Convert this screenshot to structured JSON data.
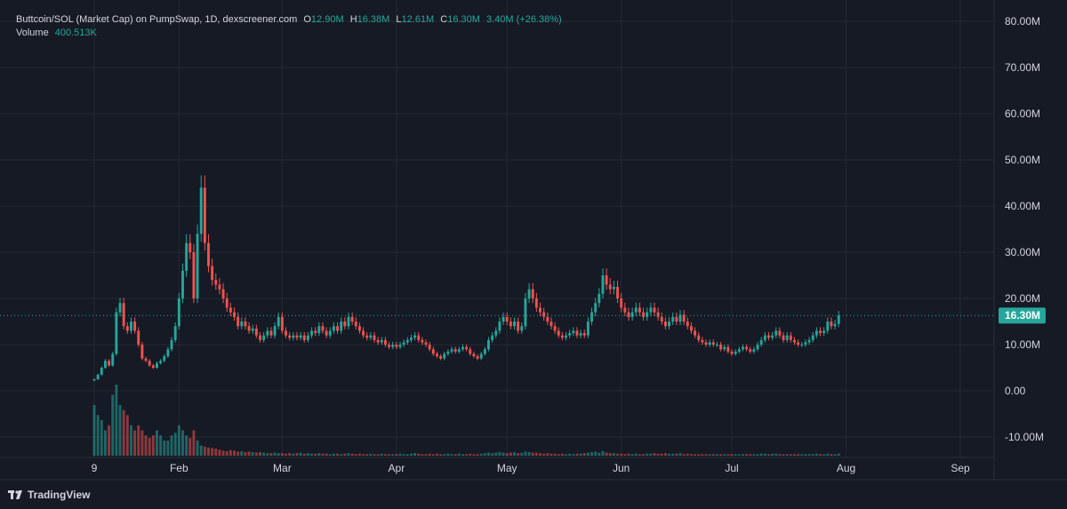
{
  "legend": {
    "symbol": "Buttcoin/SOL (Market Cap) on PumpSwap, 1D, dexscreener.com",
    "o_label": "O",
    "o_value": "12.90M",
    "h_label": "H",
    "h_value": "16.38M",
    "l_label": "L",
    "l_value": "12.61M",
    "c_label": "C",
    "c_value": "16.30M",
    "change": "3.40M (+26.38%)",
    "volume_label": "Volume",
    "volume_value": "400.513K"
  },
  "branding": {
    "name": "TradingView",
    "icon": "tradingview-logo-icon"
  },
  "colors": {
    "up": "#26a69a",
    "down": "#ef5350",
    "background": "#161a25",
    "grid": "#242833",
    "text": "#d1d4dc",
    "last_price_line": "#26a69a"
  },
  "chart_data": {
    "type": "candlestick",
    "x_axis": {
      "ticks": [
        {
          "label": "9",
          "day": 0
        },
        {
          "label": "Feb",
          "day": 23
        },
        {
          "label": "Mar",
          "day": 51
        },
        {
          "label": "Apr",
          "day": 82
        },
        {
          "label": "May",
          "day": 112
        },
        {
          "label": "Jun",
          "day": 143
        },
        {
          "label": "Jul",
          "day": 173
        },
        {
          "label": "Aug",
          "day": 204
        },
        {
          "label": "Sep",
          "day": 235
        }
      ],
      "range_days": [
        -2,
        240
      ]
    },
    "y_axis": {
      "ticks": [
        "80.00M",
        "70.00M",
        "60.00M",
        "50.00M",
        "40.00M",
        "30.00M",
        "20.00M",
        "10.00M",
        "0.00",
        "-10.00M"
      ],
      "tick_values": [
        80,
        70,
        60,
        50,
        40,
        30,
        20,
        10,
        0,
        -10
      ],
      "range": [
        -14,
        84
      ],
      "unit": "M"
    },
    "last_price": {
      "value": 16.3,
      "label": "16.30M"
    },
    "grid": true,
    "close_series": [
      [
        0,
        2.5
      ],
      [
        1,
        3.5
      ],
      [
        2,
        5
      ],
      [
        3,
        6.5
      ],
      [
        4,
        5.5
      ],
      [
        5,
        8
      ],
      [
        6,
        17
      ],
      [
        7,
        19
      ],
      [
        8,
        14
      ],
      [
        9,
        13
      ],
      [
        10,
        15
      ],
      [
        11,
        13
      ],
      [
        12,
        10
      ],
      [
        13,
        7
      ],
      [
        14,
        6.5
      ],
      [
        15,
        5.5
      ],
      [
        16,
        5
      ],
      [
        17,
        6
      ],
      [
        18,
        6.5
      ],
      [
        19,
        7.5
      ],
      [
        20,
        9
      ],
      [
        21,
        11
      ],
      [
        22,
        14
      ],
      [
        23,
        20
      ],
      [
        24,
        26
      ],
      [
        25,
        32
      ],
      [
        26,
        30
      ],
      [
        27,
        20
      ],
      [
        28,
        34
      ],
      [
        29,
        44
      ],
      [
        30,
        32
      ],
      [
        31,
        27
      ],
      [
        32,
        24
      ],
      [
        33,
        23
      ],
      [
        34,
        22
      ],
      [
        35,
        20
      ],
      [
        36,
        18
      ],
      [
        37,
        17
      ],
      [
        38,
        16
      ],
      [
        39,
        14
      ],
      [
        40,
        15
      ],
      [
        41,
        14
      ],
      [
        42,
        13
      ],
      [
        43,
        13.5
      ],
      [
        44,
        12
      ],
      [
        45,
        11
      ],
      [
        46,
        12
      ],
      [
        47,
        13
      ],
      [
        48,
        12
      ],
      [
        49,
        14
      ],
      [
        50,
        16
      ],
      [
        51,
        13
      ],
      [
        52,
        12
      ],
      [
        53,
        11.5
      ],
      [
        54,
        12
      ],
      [
        55,
        11.5
      ],
      [
        56,
        12
      ],
      [
        57,
        11
      ],
      [
        58,
        12
      ],
      [
        59,
        13
      ],
      [
        60,
        12.5
      ],
      [
        61,
        14
      ],
      [
        62,
        13
      ],
      [
        63,
        12
      ],
      [
        64,
        13
      ],
      [
        65,
        14
      ],
      [
        66,
        13
      ],
      [
        67,
        15
      ],
      [
        68,
        14
      ],
      [
        69,
        16
      ],
      [
        70,
        15
      ],
      [
        71,
        14
      ],
      [
        72,
        13
      ],
      [
        73,
        12
      ],
      [
        74,
        11.5
      ],
      [
        75,
        12
      ],
      [
        76,
        11
      ],
      [
        77,
        10.5
      ],
      [
        78,
        11
      ],
      [
        79,
        10
      ],
      [
        80,
        9.5
      ],
      [
        81,
        10
      ],
      [
        82,
        9.5
      ],
      [
        83,
        10
      ],
      [
        84,
        10.5
      ],
      [
        85,
        11
      ],
      [
        86,
        11.5
      ],
      [
        87,
        12
      ],
      [
        88,
        11
      ],
      [
        89,
        10.5
      ],
      [
        90,
        10
      ],
      [
        91,
        9
      ],
      [
        92,
        8
      ],
      [
        93,
        7.5
      ],
      [
        94,
        7
      ],
      [
        95,
        8
      ],
      [
        96,
        8.5
      ],
      [
        97,
        9
      ],
      [
        98,
        8.5
      ],
      [
        99,
        9
      ],
      [
        100,
        9.5
      ],
      [
        101,
        9
      ],
      [
        102,
        8
      ],
      [
        103,
        7.5
      ],
      [
        104,
        7
      ],
      [
        105,
        8
      ],
      [
        106,
        9
      ],
      [
        107,
        11
      ],
      [
        108,
        12
      ],
      [
        109,
        13
      ],
      [
        110,
        15
      ],
      [
        111,
        16
      ],
      [
        112,
        15
      ],
      [
        113,
        14
      ],
      [
        114,
        15
      ],
      [
        115,
        13
      ],
      [
        116,
        14
      ],
      [
        117,
        20
      ],
      [
        118,
        22
      ],
      [
        119,
        20
      ],
      [
        120,
        18
      ],
      [
        121,
        17
      ],
      [
        122,
        16
      ],
      [
        123,
        15
      ],
      [
        124,
        14
      ],
      [
        125,
        13
      ],
      [
        126,
        12
      ],
      [
        127,
        11.5
      ],
      [
        128,
        12
      ],
      [
        129,
        12.5
      ],
      [
        130,
        13
      ],
      [
        131,
        12
      ],
      [
        132,
        12.5
      ],
      [
        133,
        12
      ],
      [
        134,
        15
      ],
      [
        135,
        17
      ],
      [
        136,
        19
      ],
      [
        137,
        21
      ],
      [
        138,
        25
      ],
      [
        139,
        23
      ],
      [
        140,
        22
      ],
      [
        141,
        22.5
      ],
      [
        142,
        20
      ],
      [
        143,
        18
      ],
      [
        144,
        17
      ],
      [
        145,
        16
      ],
      [
        146,
        17
      ],
      [
        147,
        18
      ],
      [
        148,
        17
      ],
      [
        149,
        16
      ],
      [
        150,
        17
      ],
      [
        151,
        18
      ],
      [
        152,
        17
      ],
      [
        153,
        16
      ],
      [
        154,
        15
      ],
      [
        155,
        14
      ],
      [
        156,
        15
      ],
      [
        157,
        16
      ],
      [
        158,
        15
      ],
      [
        159,
        16.5
      ],
      [
        160,
        15
      ],
      [
        161,
        14
      ],
      [
        162,
        13
      ],
      [
        163,
        12
      ],
      [
        164,
        11
      ],
      [
        165,
        10.5
      ],
      [
        166,
        10
      ],
      [
        167,
        10.5
      ],
      [
        168,
        10
      ],
      [
        169,
        10
      ],
      [
        170,
        9
      ],
      [
        171,
        9.5
      ],
      [
        172,
        8.5
      ],
      [
        173,
        8
      ],
      [
        174,
        8.5
      ],
      [
        175,
        9
      ],
      [
        176,
        9.5
      ],
      [
        177,
        9
      ],
      [
        178,
        8.5
      ],
      [
        179,
        9
      ],
      [
        180,
        10
      ],
      [
        181,
        11
      ],
      [
        182,
        12
      ],
      [
        183,
        11.5
      ],
      [
        184,
        12
      ],
      [
        185,
        13
      ],
      [
        186,
        12
      ],
      [
        187,
        11
      ],
      [
        188,
        12
      ],
      [
        189,
        11
      ],
      [
        190,
        10.5
      ],
      [
        191,
        10
      ],
      [
        192,
        10
      ],
      [
        193,
        10.5
      ],
      [
        194,
        11
      ],
      [
        195,
        12
      ],
      [
        196,
        13
      ],
      [
        197,
        12.5
      ],
      [
        198,
        13
      ],
      [
        199,
        15
      ],
      [
        200,
        14
      ],
      [
        201,
        14.5
      ],
      [
        202,
        16.3
      ]
    ],
    "volume_series": [
      [
        0,
        10
      ],
      [
        1,
        8
      ],
      [
        2,
        7
      ],
      [
        3,
        5
      ],
      [
        4,
        6
      ],
      [
        5,
        12
      ],
      [
        6,
        14
      ],
      [
        7,
        10
      ],
      [
        8,
        9
      ],
      [
        9,
        8
      ],
      [
        10,
        6
      ],
      [
        11,
        5
      ],
      [
        12,
        6
      ],
      [
        13,
        5
      ],
      [
        14,
        4
      ],
      [
        15,
        3.5
      ],
      [
        16,
        4
      ],
      [
        17,
        5
      ],
      [
        18,
        4
      ],
      [
        19,
        3
      ],
      [
        20,
        3
      ],
      [
        21,
        4
      ],
      [
        22,
        4.5
      ],
      [
        23,
        6
      ],
      [
        24,
        5
      ],
      [
        25,
        4
      ],
      [
        26,
        3.5
      ],
      [
        27,
        5
      ],
      [
        28,
        3
      ],
      [
        29,
        2
      ],
      [
        30,
        1.8
      ],
      [
        31,
        1.6
      ],
      [
        32,
        1.5
      ],
      [
        33,
        1.4
      ],
      [
        34,
        1.2
      ],
      [
        35,
        1
      ],
      [
        36,
        0.9
      ],
      [
        37,
        1.1
      ],
      [
        38,
        1
      ],
      [
        39,
        0.8
      ],
      [
        40,
        0.9
      ],
      [
        41,
        0.7
      ],
      [
        42,
        0.8
      ],
      [
        43,
        0.7
      ],
      [
        44,
        0.6
      ],
      [
        45,
        0.7
      ],
      [
        46,
        0.6
      ],
      [
        47,
        0.5
      ],
      [
        48,
        0.5
      ],
      [
        49,
        0.6
      ],
      [
        50,
        0.5
      ],
      [
        51,
        0.5
      ],
      [
        52,
        0.4
      ],
      [
        53,
        0.5
      ],
      [
        54,
        0.4
      ],
      [
        55,
        0.5
      ],
      [
        56,
        0.6
      ],
      [
        57,
        0.4
      ],
      [
        58,
        0.5
      ],
      [
        59,
        0.4
      ],
      [
        60,
        0.4
      ],
      [
        61,
        0.5
      ],
      [
        62,
        0.4
      ],
      [
        63,
        0.4
      ],
      [
        64,
        0.3
      ],
      [
        65,
        0.4
      ],
      [
        66,
        0.4
      ],
      [
        67,
        0.3
      ],
      [
        68,
        0.4
      ],
      [
        69,
        0.5
      ],
      [
        70,
        0.4
      ],
      [
        71,
        0.3
      ],
      [
        72,
        0.4
      ],
      [
        73,
        0.3
      ],
      [
        74,
        0.3
      ],
      [
        75,
        0.4
      ],
      [
        76,
        0.3
      ],
      [
        77,
        0.3
      ],
      [
        78,
        0.4
      ],
      [
        79,
        0.3
      ],
      [
        80,
        0.3
      ],
      [
        81,
        0.3
      ],
      [
        82,
        0.3
      ],
      [
        83,
        0.4
      ],
      [
        84,
        0.3
      ],
      [
        85,
        0.3
      ],
      [
        86,
        0.4
      ],
      [
        87,
        0.5
      ],
      [
        88,
        0.4
      ],
      [
        89,
        0.3
      ],
      [
        90,
        0.3
      ],
      [
        91,
        0.4
      ],
      [
        92,
        0.3
      ],
      [
        93,
        0.4
      ],
      [
        94,
        0.3
      ],
      [
        95,
        0.3
      ],
      [
        96,
        0.4
      ],
      [
        97,
        0.3
      ],
      [
        98,
        0.3
      ],
      [
        99,
        0.4
      ],
      [
        100,
        0.3
      ],
      [
        101,
        0.3
      ],
      [
        102,
        0.4
      ],
      [
        103,
        0.3
      ],
      [
        104,
        0.3
      ],
      [
        105,
        0.4
      ],
      [
        106,
        0.5
      ],
      [
        107,
        0.6
      ],
      [
        108,
        0.5
      ],
      [
        109,
        0.6
      ],
      [
        110,
        0.7
      ],
      [
        111,
        0.6
      ],
      [
        112,
        0.5
      ],
      [
        113,
        0.6
      ],
      [
        114,
        0.7
      ],
      [
        115,
        0.5
      ],
      [
        116,
        0.6
      ],
      [
        117,
        0.8
      ],
      [
        118,
        0.7
      ],
      [
        119,
        0.6
      ],
      [
        120,
        0.6
      ],
      [
        121,
        0.5
      ],
      [
        122,
        0.4
      ],
      [
        123,
        0.5
      ],
      [
        124,
        0.4
      ],
      [
        125,
        0.4
      ],
      [
        126,
        0.3
      ],
      [
        127,
        0.4
      ],
      [
        128,
        0.3
      ],
      [
        129,
        0.4
      ],
      [
        130,
        0.3
      ],
      [
        131,
        0.4
      ],
      [
        132,
        0.4
      ],
      [
        133,
        0.5
      ],
      [
        134,
        0.6
      ],
      [
        135,
        0.7
      ],
      [
        136,
        0.8
      ],
      [
        137,
        0.6
      ],
      [
        138,
        0.9
      ],
      [
        139,
        0.6
      ],
      [
        140,
        0.5
      ],
      [
        141,
        0.5
      ],
      [
        142,
        0.4
      ],
      [
        143,
        0.4
      ],
      [
        144,
        0.3
      ],
      [
        145,
        0.4
      ],
      [
        146,
        0.3
      ],
      [
        147,
        0.4
      ],
      [
        148,
        0.3
      ],
      [
        149,
        0.3
      ],
      [
        150,
        0.4
      ],
      [
        151,
        0.4
      ],
      [
        152,
        0.5
      ],
      [
        153,
        0.4
      ],
      [
        154,
        0.4
      ],
      [
        155,
        0.5
      ],
      [
        156,
        0.4
      ],
      [
        157,
        0.4
      ],
      [
        158,
        0.4
      ],
      [
        159,
        0.5
      ],
      [
        160,
        0.3
      ],
      [
        161,
        0.4
      ],
      [
        162,
        0.3
      ],
      [
        163,
        0.3
      ],
      [
        164,
        0.3
      ],
      [
        165,
        0.3
      ],
      [
        166,
        0.3
      ],
      [
        167,
        0.3
      ],
      [
        168,
        0.3
      ],
      [
        169,
        0.3
      ],
      [
        170,
        0.3
      ],
      [
        171,
        0.3
      ],
      [
        172,
        0.3
      ],
      [
        173,
        0.3
      ],
      [
        174,
        0.3
      ],
      [
        175,
        0.3
      ],
      [
        176,
        0.3
      ],
      [
        177,
        0.3
      ],
      [
        178,
        0.3
      ],
      [
        179,
        0.3
      ],
      [
        180,
        0.3
      ],
      [
        181,
        0.4
      ],
      [
        182,
        0.4
      ],
      [
        183,
        0.3
      ],
      [
        184,
        0.4
      ],
      [
        185,
        0.4
      ],
      [
        186,
        0.3
      ],
      [
        187,
        0.3
      ],
      [
        188,
        0.3
      ],
      [
        189,
        0.3
      ],
      [
        190,
        0.3
      ],
      [
        191,
        0.3
      ],
      [
        192,
        0.3
      ],
      [
        193,
        0.3
      ],
      [
        194,
        0.3
      ],
      [
        195,
        0.3
      ],
      [
        196,
        0.4
      ],
      [
        197,
        0.3
      ],
      [
        198,
        0.3
      ],
      [
        199,
        0.4
      ],
      [
        200,
        0.3
      ],
      [
        201,
        0.3
      ],
      [
        202,
        0.4
      ]
    ]
  }
}
